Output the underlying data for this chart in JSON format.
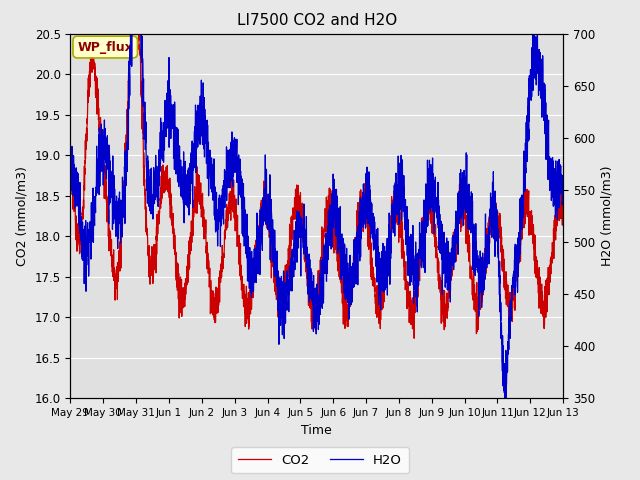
{
  "title": "LI7500 CO2 and H2O",
  "xlabel": "Time",
  "ylabel_left": "CO2 (mmol/m3)",
  "ylabel_right": "H2O (mmol/m3)",
  "ylim_left": [
    16.0,
    20.5
  ],
  "ylim_right": [
    350,
    700
  ],
  "yticks_left": [
    16.0,
    16.5,
    17.0,
    17.5,
    18.0,
    18.5,
    19.0,
    19.5,
    20.0,
    20.5
  ],
  "yticks_right": [
    350,
    400,
    450,
    500,
    550,
    600,
    650,
    700
  ],
  "co2_color": "#cc0000",
  "h2o_color": "#0000cc",
  "annotation_text": "WP_flux",
  "legend_co2": "CO2",
  "legend_h2o": "H2O",
  "background_color": "#e8e8e8",
  "plot_bg_color": "#e0e0e0",
  "grid_color": "#ffffff",
  "xtick_labels": [
    "May 29",
    "May 30",
    "May 31",
    "Jun 1",
    "Jun 2",
    "Jun 3",
    "Jun 4",
    "Jun 5",
    "Jun 6",
    "Jun 7",
    "Jun 8",
    "Jun 9",
    "Jun 10",
    "Jun 11",
    "Jun 12",
    "Jun 13"
  ],
  "linewidth": 0.9,
  "figwidth": 6.4,
  "figheight": 4.8,
  "dpi": 100
}
